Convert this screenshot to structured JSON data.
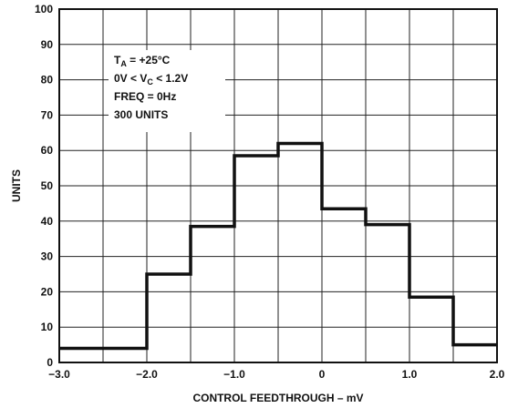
{
  "chart_data": {
    "type": "bar",
    "style": "step-histogram",
    "xlabel": "CONTROL FEEDTHROUGH – mV",
    "ylabel": "UNITS",
    "xlim": [
      -3.0,
      2.0
    ],
    "ylim": [
      0,
      100
    ],
    "x_ticks": [
      {
        "value": -3.0,
        "label": "−3.0"
      },
      {
        "value": -2.0,
        "label": "−2.0"
      },
      {
        "value": -1.0,
        "label": "−1.0"
      },
      {
        "value": 0.0,
        "label": "0"
      },
      {
        "value": 1.0,
        "label": "1.0"
      },
      {
        "value": 2.0,
        "label": "2.0"
      }
    ],
    "x_grid_step": 0.5,
    "y_ticks": [
      {
        "value": 0,
        "label": "0"
      },
      {
        "value": 10,
        "label": "10"
      },
      {
        "value": 20,
        "label": "20"
      },
      {
        "value": 30,
        "label": "30"
      },
      {
        "value": 40,
        "label": "40"
      },
      {
        "value": 50,
        "label": "50"
      },
      {
        "value": 60,
        "label": "60"
      },
      {
        "value": 70,
        "label": "70"
      },
      {
        "value": 80,
        "label": "80"
      },
      {
        "value": 90,
        "label": "90"
      },
      {
        "value": 100,
        "label": "100"
      }
    ],
    "grid": true,
    "bins": [
      {
        "x0": -3.0,
        "x1": -2.0,
        "value": 4
      },
      {
        "x0": -2.0,
        "x1": -1.5,
        "value": 25
      },
      {
        "x0": -1.5,
        "x1": -1.0,
        "value": 38.5
      },
      {
        "x0": -1.0,
        "x1": -0.5,
        "value": 58.5
      },
      {
        "x0": -0.5,
        "x1": 0.0,
        "value": 62
      },
      {
        "x0": 0.0,
        "x1": 0.5,
        "value": 43.5
      },
      {
        "x0": 0.5,
        "x1": 1.0,
        "value": 39
      },
      {
        "x0": 1.0,
        "x1": 1.5,
        "value": 18.5
      },
      {
        "x0": 1.5,
        "x1": 2.0,
        "value": 5
      }
    ],
    "annotation": {
      "position": "top-left",
      "lines": [
        {
          "main": "T",
          "sub": "A",
          "rest": " = +25°C"
        },
        {
          "main": "0V < V",
          "sub": "C",
          "rest": " < 1.2V"
        },
        {
          "main": "FREQ = 0Hz",
          "sub": "",
          "rest": ""
        },
        {
          "main": "300 UNITS",
          "sub": "",
          "rest": ""
        }
      ]
    }
  }
}
